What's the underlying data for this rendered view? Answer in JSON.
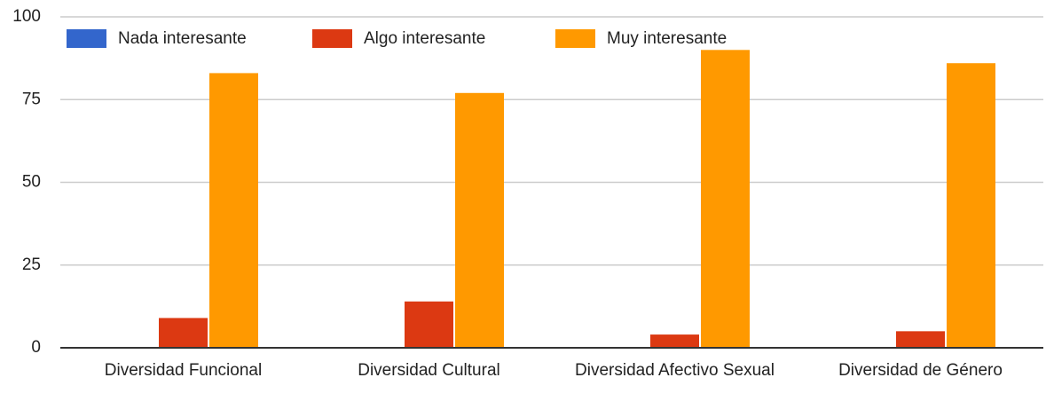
{
  "chart_data": {
    "type": "bar",
    "categories": [
      "Diversidad Funcional",
      "Diversidad Cultural",
      "Diversidad Afectivo Sexual",
      "Diversidad de Género"
    ],
    "series": [
      {
        "name": "Nada interesante",
        "color": "#3366cc",
        "values": [
          0,
          0,
          0,
          0
        ]
      },
      {
        "name": "Algo interesante",
        "color": "#dc3912",
        "values": [
          9,
          14,
          4,
          5
        ]
      },
      {
        "name": "Muy interesante",
        "color": "#ff9900",
        "values": [
          83,
          77,
          90,
          86
        ]
      }
    ],
    "ylim": [
      0,
      100
    ],
    "yticks": [
      0,
      25,
      50,
      75,
      100
    ],
    "grid": true,
    "legend": "top"
  }
}
